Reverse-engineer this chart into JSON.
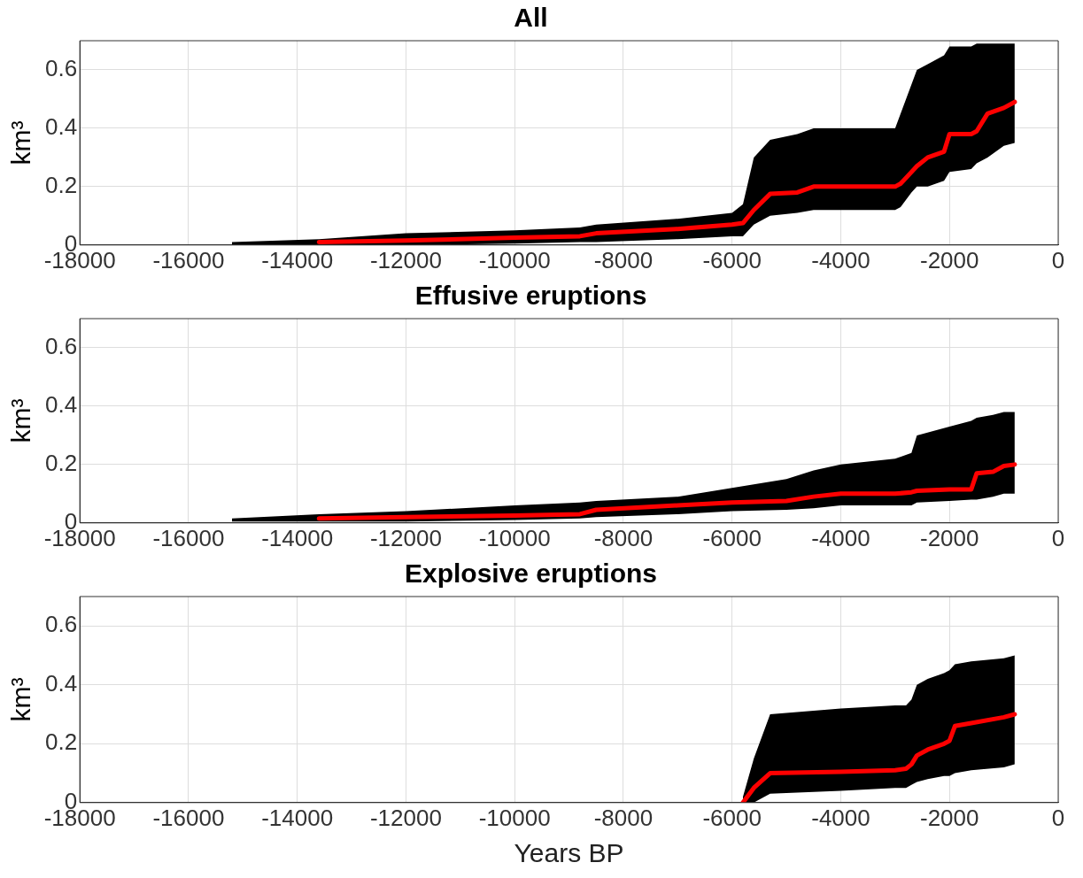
{
  "chart_data": [
    {
      "type": "line",
      "title": "All",
      "ylabel": "km³",
      "xlim": [
        -18000,
        0
      ],
      "xticks": [
        -18000,
        -16000,
        -14000,
        -12000,
        -10000,
        -8000,
        -6000,
        -4000,
        -2000,
        0
      ],
      "ylim": [
        0,
        0.7
      ],
      "yticks": [
        0,
        0.2,
        0.4,
        0.6
      ],
      "grid": true,
      "legend": false,
      "x": [
        -15200,
        -13600,
        -12000,
        -10000,
        -8800,
        -8500,
        -7000,
        -6000,
        -5800,
        -5600,
        -5300,
        -4800,
        -4500,
        -3000,
        -2900,
        -2700,
        -2600,
        -2400,
        -2100,
        -2000,
        -1600,
        -1500,
        -1300,
        -1000,
        -800
      ],
      "series": [
        {
          "color": "#ff0000",
          "values": [
            null,
            0.01,
            0.015,
            0.025,
            0.03,
            0.04,
            0.055,
            0.07,
            0.075,
            0.12,
            0.175,
            0.18,
            0.2,
            0.2,
            0.21,
            0.25,
            0.27,
            0.3,
            0.32,
            0.38,
            0.38,
            0.39,
            0.45,
            0.47,
            0.49
          ],
          "lower": [
            0,
            0,
            0,
            0.005,
            0.01,
            0.01,
            0.02,
            0.03,
            0.03,
            0.07,
            0.1,
            0.11,
            0.12,
            0.12,
            0.13,
            0.18,
            0.2,
            0.2,
            0.22,
            0.25,
            0.26,
            0.28,
            0.3,
            0.34,
            0.35
          ],
          "upper": [
            0.01,
            0.02,
            0.04,
            0.05,
            0.06,
            0.07,
            0.09,
            0.11,
            0.14,
            0.3,
            0.36,
            0.38,
            0.4,
            0.4,
            0.45,
            0.55,
            0.6,
            0.62,
            0.65,
            0.68,
            0.68,
            0.69,
            0.69,
            0.69,
            0.69
          ]
        }
      ]
    },
    {
      "type": "line",
      "title": "Effusive eruptions",
      "ylabel": "km³",
      "xlim": [
        -18000,
        0
      ],
      "xticks": [
        -18000,
        -16000,
        -14000,
        -12000,
        -10000,
        -8000,
        -6000,
        -4000,
        -2000,
        0
      ],
      "ylim": [
        0,
        0.7
      ],
      "yticks": [
        0,
        0.2,
        0.4,
        0.6
      ],
      "grid": true,
      "legend": false,
      "x": [
        -15200,
        -13600,
        -12000,
        -10000,
        -8800,
        -8500,
        -7000,
        -6000,
        -5000,
        -4500,
        -4000,
        -3000,
        -2700,
        -2600,
        -2000,
        -1600,
        -1500,
        -1200,
        -1000,
        -800
      ],
      "series": [
        {
          "color": "#ff0000",
          "values": [
            null,
            0.015,
            0.02,
            0.025,
            0.03,
            0.045,
            0.06,
            0.07,
            0.075,
            0.09,
            0.1,
            0.1,
            0.105,
            0.11,
            0.115,
            0.115,
            0.17,
            0.175,
            0.195,
            0.2
          ],
          "lower": [
            0.005,
            0.005,
            0.005,
            0.01,
            0.015,
            0.02,
            0.03,
            0.04,
            0.045,
            0.05,
            0.06,
            0.06,
            0.06,
            0.07,
            0.075,
            0.08,
            0.08,
            0.09,
            0.1,
            0.1
          ],
          "upper": [
            0.015,
            0.03,
            0.04,
            0.06,
            0.07,
            0.075,
            0.09,
            0.12,
            0.15,
            0.18,
            0.2,
            0.22,
            0.24,
            0.3,
            0.33,
            0.35,
            0.36,
            0.37,
            0.38,
            0.38
          ]
        }
      ]
    },
    {
      "type": "line",
      "title": "Explosive eruptions",
      "ylabel": "km³",
      "xlabel": "Years BP",
      "xlim": [
        -18000,
        0
      ],
      "xticks": [
        -18000,
        -16000,
        -14000,
        -12000,
        -10000,
        -8000,
        -6000,
        -4000,
        -2000,
        0
      ],
      "ylim": [
        0,
        0.7
      ],
      "yticks": [
        0,
        0.2,
        0.4,
        0.6
      ],
      "grid": true,
      "legend": false,
      "x": [
        -5800,
        -5600,
        -5300,
        -4000,
        -3000,
        -2800,
        -2700,
        -2600,
        -2400,
        -2100,
        -2000,
        -1900,
        -1600,
        -1000,
        -800
      ],
      "series": [
        {
          "color": "#ff0000",
          "values": [
            0,
            0.05,
            0.1,
            0.105,
            0.11,
            0.115,
            0.13,
            0.16,
            0.18,
            0.2,
            0.21,
            0.26,
            0.27,
            0.29,
            0.3
          ],
          "lower": [
            0,
            0,
            0.03,
            0.04,
            0.05,
            0.05,
            0.06,
            0.07,
            0.08,
            0.09,
            0.09,
            0.1,
            0.11,
            0.12,
            0.13
          ],
          "upper": [
            0.02,
            0.15,
            0.3,
            0.32,
            0.33,
            0.33,
            0.35,
            0.4,
            0.42,
            0.44,
            0.45,
            0.47,
            0.48,
            0.49,
            0.5
          ]
        }
      ]
    }
  ]
}
